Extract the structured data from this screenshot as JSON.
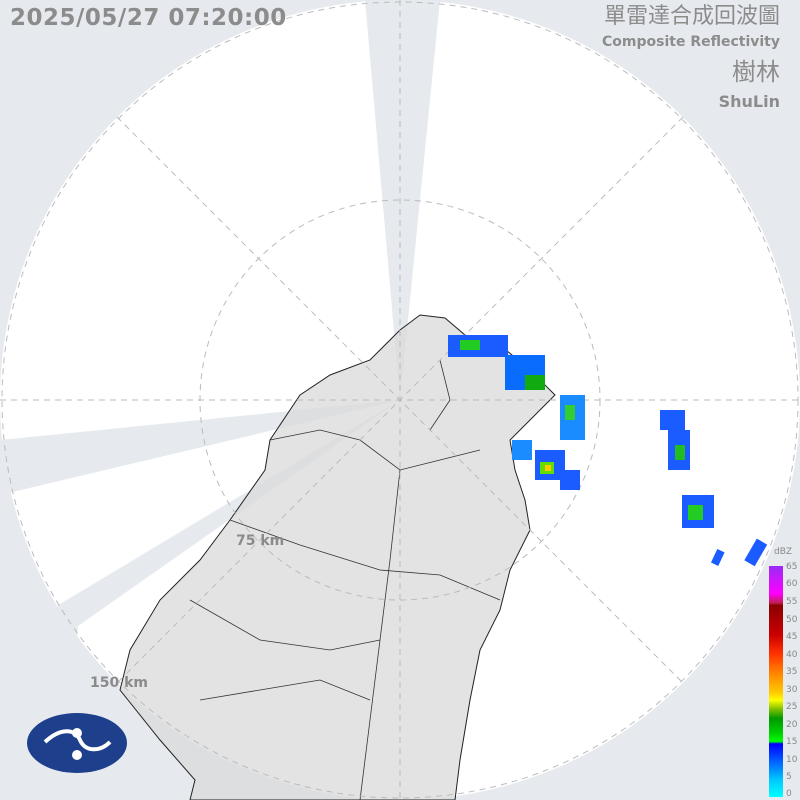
{
  "header": {
    "timestamp": "2025/05/27 07:20:00",
    "product_zh": "單雷達合成回波圖",
    "product_en": "Composite Reflectivity",
    "site_zh": "樹林",
    "site_en": "ShuLin"
  },
  "range_rings": {
    "inner_label": "75 km",
    "outer_label": "150 km"
  },
  "legend": {
    "unit": "dBZ",
    "ticks": [
      "65",
      "60",
      "55",
      "50",
      "45",
      "40",
      "35",
      "30",
      "25",
      "20",
      "15",
      "10",
      "5",
      "0"
    ]
  },
  "colors": {
    "background": "#e6eaee",
    "radar_coverage": "#ffffff",
    "land": "#e4e4e4",
    "logo": "#1e3f8c"
  },
  "logo": {
    "name": "Central Weather Administration emblem"
  }
}
